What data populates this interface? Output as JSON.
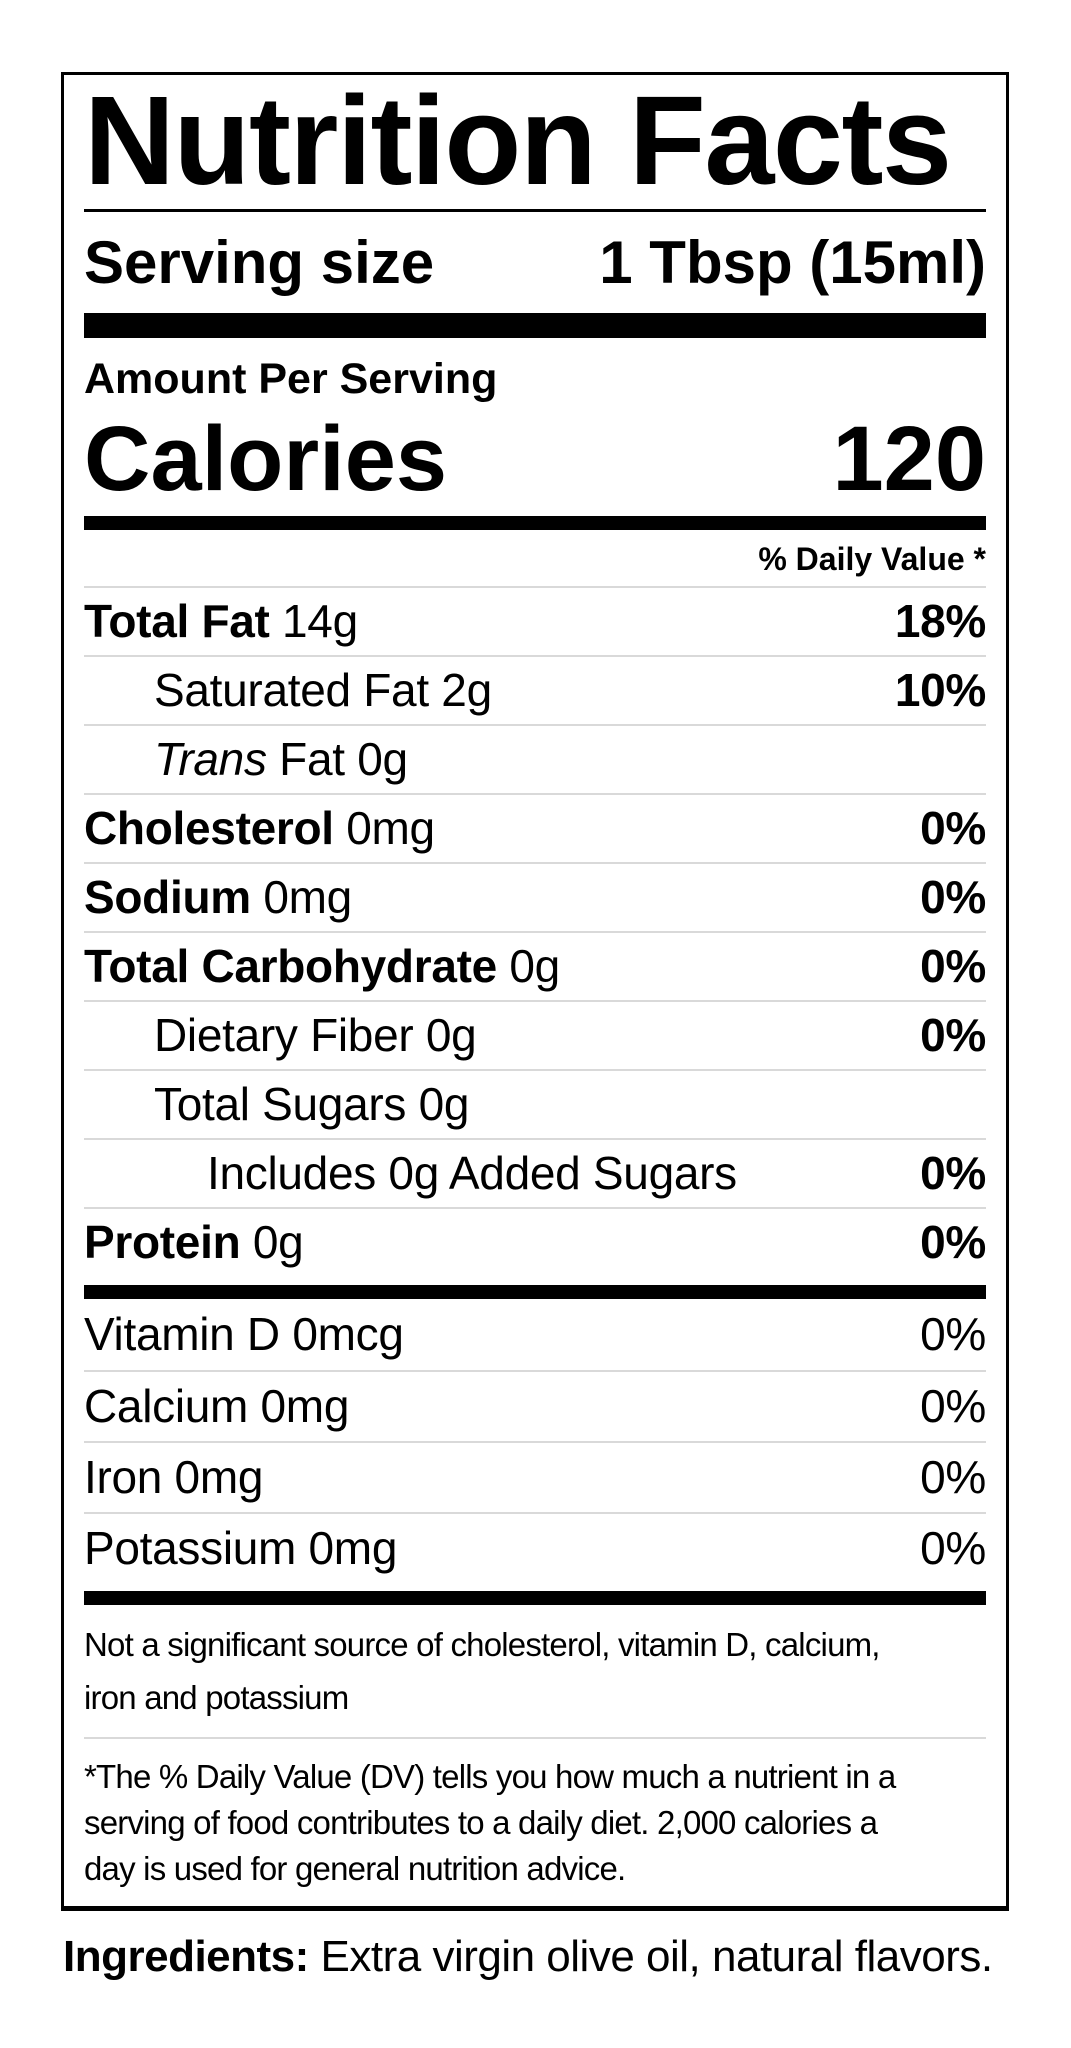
{
  "colors": {
    "text": "#000000",
    "divider": "#d9d9d9",
    "background": "#ffffff"
  },
  "label": {
    "title": "Nutrition Facts",
    "serving": {
      "label": "Serving size",
      "value": "1 Tbsp (15ml)"
    },
    "amount_per_serving": "Amount Per Serving",
    "calories": {
      "label": "Calories",
      "value": "120"
    },
    "daily_value_header": "% Daily Value *",
    "nutrients": [
      {
        "parts": [
          {
            "t": "Total Fat",
            "s": "bold"
          },
          {
            "t": " 14g",
            "s": "regular"
          }
        ],
        "dv": "18%",
        "dvBold": true,
        "indent": 0
      },
      {
        "parts": [
          {
            "t": "Saturated Fat 2g",
            "s": "regular"
          }
        ],
        "dv": "10%",
        "dvBold": true,
        "indent": 1
      },
      {
        "parts": [
          {
            "t": "Trans",
            "s": "italic"
          },
          {
            "t": " Fat 0g",
            "s": "regular"
          }
        ],
        "dv": "",
        "dvBold": false,
        "indent": 1
      },
      {
        "parts": [
          {
            "t": "Cholesterol",
            "s": "bold"
          },
          {
            "t": " 0mg",
            "s": "regular"
          }
        ],
        "dv": "0%",
        "dvBold": true,
        "indent": 0
      },
      {
        "parts": [
          {
            "t": "Sodium",
            "s": "bold"
          },
          {
            "t": " 0mg",
            "s": "regular"
          }
        ],
        "dv": "0%",
        "dvBold": true,
        "indent": 0
      },
      {
        "parts": [
          {
            "t": "Total Carbohydrate",
            "s": "bold"
          },
          {
            "t": " 0g",
            "s": "regular"
          }
        ],
        "dv": "0%",
        "dvBold": true,
        "indent": 0
      },
      {
        "parts": [
          {
            "t": "Dietary Fiber 0g",
            "s": "regular"
          }
        ],
        "dv": "0%",
        "dvBold": true,
        "indent": 1
      },
      {
        "parts": [
          {
            "t": "Total Sugars 0g",
            "s": "regular"
          }
        ],
        "dv": "",
        "dvBold": false,
        "indent": 1
      },
      {
        "parts": [
          {
            "t": "Includes 0g Added Sugars",
            "s": "regular"
          }
        ],
        "dv": "0%",
        "dvBold": true,
        "indent": 2
      },
      {
        "parts": [
          {
            "t": "Protein",
            "s": "bold"
          },
          {
            "t": " 0g",
            "s": "regular"
          }
        ],
        "dv": "0%",
        "dvBold": true,
        "indent": 0
      }
    ],
    "vitamins": [
      {
        "parts": [
          {
            "t": "Vitamin D 0mcg",
            "s": "regular"
          }
        ],
        "dv": "0%",
        "dvBold": false,
        "indent": 0
      },
      {
        "parts": [
          {
            "t": "Calcium 0mg",
            "s": "regular"
          }
        ],
        "dv": "0%",
        "dvBold": false,
        "indent": 0
      },
      {
        "parts": [
          {
            "t": "Iron 0mg",
            "s": "regular"
          }
        ],
        "dv": "0%",
        "dvBold": false,
        "indent": 0
      },
      {
        "parts": [
          {
            "t": "Potassium 0mg",
            "s": "regular"
          }
        ],
        "dv": "0%",
        "dvBold": false,
        "indent": 0
      }
    ],
    "not_significant_lines": [
      "Not a significant source of cholesterol, vitamin D, calcium,",
      "iron and potassium"
    ],
    "dv_footnote_lines": [
      "*The % Daily Value (DV) tells you how much a nutrient in a",
      "serving of food contributes to a daily diet. 2,000 calories a",
      "day is used for general nutrition advice."
    ]
  },
  "ingredients": {
    "label": "Ingredients:",
    "text": " Extra virgin olive oil, natural flavors."
  }
}
